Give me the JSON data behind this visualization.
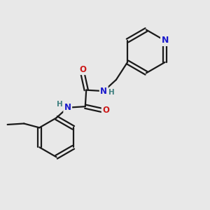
{
  "bg_color": "#e8e8e8",
  "bond_color": "#1a1a1a",
  "nitrogen_color": "#1a1acc",
  "oxygen_color": "#cc1a1a",
  "bond_width": 1.6,
  "dbo": 0.18,
  "font_size_atom": 8.5,
  "figsize": [
    3.0,
    3.0
  ],
  "dpi": 100,
  "xlim": [
    0,
    10
  ],
  "ylim": [
    0,
    10
  ]
}
